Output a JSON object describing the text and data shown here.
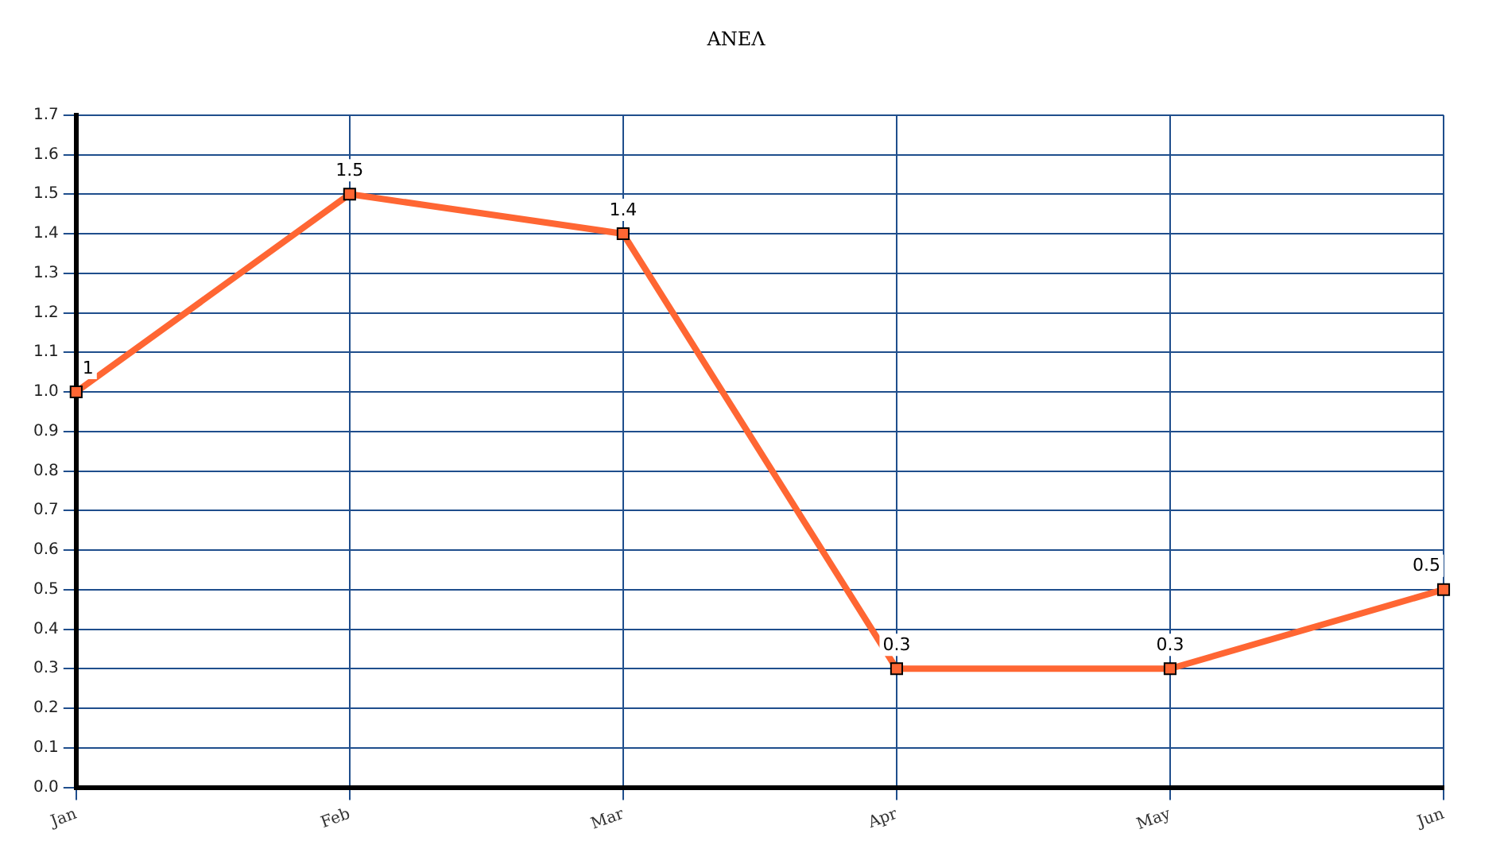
{
  "chart_data": {
    "type": "line",
    "title": "ΑΝΕΛ",
    "categories": [
      "Jan",
      "Feb",
      "Mar",
      "Apr",
      "May",
      "Jun"
    ],
    "series": [
      {
        "color": "#ff6633",
        "values": [
          1,
          1.5,
          1.4,
          0.3,
          0.3,
          0.5
        ]
      }
    ],
    "ylim": [
      0,
      1.7
    ],
    "yticks": [
      "0.0",
      "0.1",
      "0.2",
      "0.3",
      "0.4",
      "0.5",
      "0.6",
      "0.7",
      "0.8",
      "0.9",
      "1.0",
      "1.1",
      "1.2",
      "1.3",
      "1.4",
      "1.5",
      "1.6",
      "1.7"
    ],
    "grid": true,
    "marker": "square",
    "data_labels": true
  }
}
